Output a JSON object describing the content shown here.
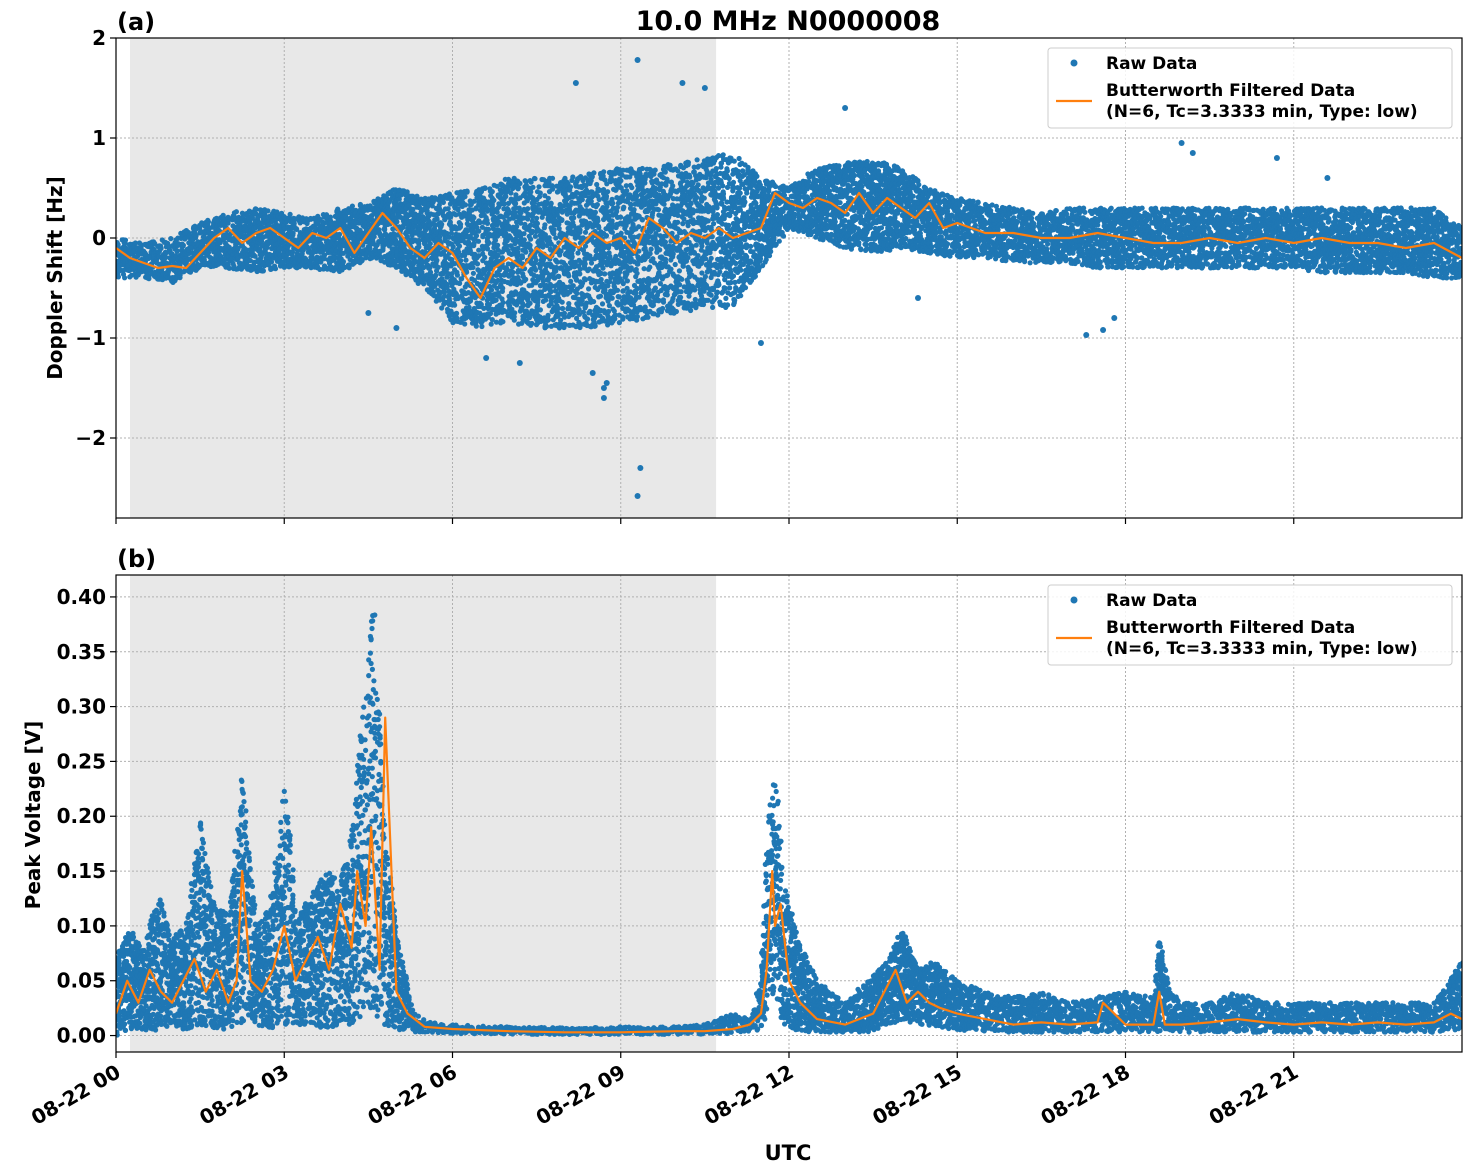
{
  "title": "10.0 MHz N0000008",
  "xlabel": "UTC",
  "x_tick_labels": [
    "08-22 00",
    "08-22 03",
    "08-22 06",
    "08-22 09",
    "08-22 12",
    "08-22 15",
    "08-22 18",
    "08-22 21"
  ],
  "colors": {
    "raw": "#1f77b4",
    "filtered": "#ff7f0e",
    "shade": "#e8e8e8",
    "grid": "#b0b0b0"
  },
  "legend_placement": "upper right",
  "legend": {
    "raw_label": "Raw Data",
    "filtered_label_line1": "Butterworth Filtered Data",
    "filtered_label_line2": "(N=6, Tc=3.3333 min, Type: low)"
  },
  "chart_data": [
    {
      "panel": "(a)",
      "type": "scatter",
      "ylabel": "Doppler Shift [Hz]",
      "ylim": [
        -2.8,
        2.0
      ],
      "y_ticks": [
        2,
        1,
        0,
        -1,
        -2
      ],
      "y_tick_labels": [
        "2",
        "1",
        "0",
        "−1",
        "−2"
      ],
      "xlim_hours": [
        0,
        24
      ],
      "grid": true,
      "shaded_interval_hours": [
        0.25,
        10.7
      ],
      "series": [
        {
          "name": "Raw Data",
          "kind": "envelope",
          "x": [
            0,
            0.5,
            1,
            1.5,
            2,
            2.5,
            3,
            3.5,
            4,
            4.5,
            5,
            5.5,
            6,
            6.5,
            7,
            7.5,
            8,
            8.5,
            9,
            9.5,
            10,
            10.5,
            11,
            11.5,
            12,
            12.5,
            13,
            13.5,
            14,
            14.5,
            15,
            15.5,
            16,
            16.5,
            17,
            17.5,
            18,
            18.5,
            19,
            19.5,
            20,
            20.5,
            21,
            21.5,
            22,
            22.5,
            23,
            23.5,
            24
          ],
          "low": [
            -0.4,
            -0.4,
            -0.45,
            -0.3,
            -0.3,
            -0.35,
            -0.3,
            -0.3,
            -0.35,
            -0.2,
            -0.3,
            -0.5,
            -0.85,
            -0.9,
            -0.85,
            -0.9,
            -0.9,
            -0.9,
            -0.85,
            -0.8,
            -0.75,
            -0.7,
            -0.7,
            -0.3,
            0.1,
            0.0,
            -0.1,
            -0.15,
            -0.1,
            -0.15,
            -0.2,
            -0.2,
            -0.25,
            -0.25,
            -0.25,
            -0.3,
            -0.3,
            -0.3,
            -0.3,
            -0.3,
            -0.3,
            -0.3,
            -0.3,
            -0.35,
            -0.35,
            -0.35,
            -0.35,
            -0.4,
            -0.4
          ],
          "high": [
            0.0,
            -0.05,
            0.0,
            0.15,
            0.25,
            0.3,
            0.25,
            0.2,
            0.3,
            0.35,
            0.5,
            0.4,
            0.45,
            0.5,
            0.6,
            0.6,
            0.6,
            0.65,
            0.7,
            0.7,
            0.75,
            0.8,
            0.85,
            0.6,
            0.5,
            0.7,
            0.75,
            0.8,
            0.7,
            0.5,
            0.4,
            0.35,
            0.3,
            0.25,
            0.3,
            0.3,
            0.3,
            0.3,
            0.3,
            0.3,
            0.3,
            0.3,
            0.3,
            0.3,
            0.3,
            0.3,
            0.3,
            0.3,
            0.1
          ]
        },
        {
          "name": "Raw Data",
          "kind": "points",
          "x": [
            8.2,
            9.3,
            9.35,
            9.3,
            8.7,
            10.1,
            10.5,
            11.5,
            13.0,
            17.3,
            17.6,
            19.0,
            20.7,
            8.7,
            8.75,
            8.5,
            7.2,
            6.6,
            5.0,
            4.5,
            14.3,
            17.8,
            21.6,
            19.2
          ],
          "y": [
            1.55,
            1.78,
            -2.3,
            -2.58,
            -1.6,
            1.55,
            1.5,
            -1.05,
            1.3,
            -0.97,
            -0.92,
            0.95,
            0.8,
            -1.5,
            -1.45,
            -1.35,
            -1.25,
            -1.2,
            -0.9,
            -0.75,
            -0.6,
            -0.8,
            0.6,
            0.85
          ]
        },
        {
          "name": "Butterworth Filtered Data (N=6, Tc=3.3333 min, Type: low)",
          "kind": "line",
          "x": [
            0,
            0.25,
            0.5,
            0.75,
            1,
            1.25,
            1.5,
            1.75,
            2,
            2.25,
            2.5,
            2.75,
            3,
            3.25,
            3.5,
            3.75,
            4,
            4.25,
            4.5,
            4.75,
            5,
            5.25,
            5.5,
            5.75,
            6,
            6.25,
            6.5,
            6.75,
            7,
            7.25,
            7.5,
            7.75,
            8,
            8.25,
            8.5,
            8.75,
            9,
            9.25,
            9.5,
            9.75,
            10,
            10.25,
            10.5,
            10.75,
            11,
            11.25,
            11.5,
            11.75,
            12,
            12.25,
            12.5,
            12.75,
            13,
            13.25,
            13.5,
            13.75,
            14,
            14.25,
            14.5,
            14.75,
            15,
            15.5,
            16,
            16.5,
            17,
            17.5,
            18,
            18.5,
            19,
            19.5,
            20,
            20.5,
            21,
            21.5,
            22,
            22.5,
            23,
            23.5,
            24
          ],
          "y": [
            -0.1,
            -0.2,
            -0.25,
            -0.3,
            -0.28,
            -0.3,
            -0.15,
            0.0,
            0.1,
            -0.05,
            0.05,
            0.1,
            0.0,
            -0.1,
            0.05,
            0.0,
            0.1,
            -0.15,
            0.05,
            0.25,
            0.1,
            -0.1,
            -0.2,
            -0.05,
            -0.15,
            -0.4,
            -0.6,
            -0.3,
            -0.2,
            -0.3,
            -0.1,
            -0.2,
            0.0,
            -0.1,
            0.05,
            -0.05,
            0.0,
            -0.15,
            0.2,
            0.1,
            -0.05,
            0.05,
            0.0,
            0.1,
            0.0,
            0.05,
            0.1,
            0.45,
            0.35,
            0.3,
            0.4,
            0.35,
            0.25,
            0.45,
            0.25,
            0.4,
            0.3,
            0.2,
            0.35,
            0.1,
            0.15,
            0.05,
            0.05,
            0.0,
            0.0,
            0.05,
            0.0,
            -0.05,
            -0.05,
            0.0,
            -0.05,
            0.0,
            -0.05,
            0.0,
            -0.05,
            -0.05,
            -0.1,
            -0.05,
            -0.2
          ]
        }
      ]
    },
    {
      "panel": "(b)",
      "type": "scatter",
      "ylabel": "Peak Voltage [V]",
      "ylim": [
        -0.015,
        0.42
      ],
      "y_ticks": [
        0.4,
        0.35,
        0.3,
        0.25,
        0.2,
        0.15,
        0.1,
        0.05,
        0.0
      ],
      "y_tick_labels": [
        "0.40",
        "0.35",
        "0.30",
        "0.25",
        "0.20",
        "0.15",
        "0.10",
        "0.05",
        "0.00"
      ],
      "xlim_hours": [
        0,
        24
      ],
      "grid": true,
      "shaded_interval_hours": [
        0.25,
        10.7
      ],
      "series": [
        {
          "name": "Raw Data",
          "kind": "envelope",
          "x": [
            0,
            0.25,
            0.5,
            0.75,
            1,
            1.25,
            1.5,
            1.75,
            2,
            2.25,
            2.5,
            2.75,
            3,
            3.25,
            3.5,
            3.75,
            4,
            4.25,
            4.4,
            4.6,
            4.8,
            5.0,
            5.3,
            5.6,
            6,
            7,
            8,
            9,
            10,
            10.5,
            11,
            11.3,
            11.5,
            11.6,
            11.75,
            11.9,
            12.1,
            12.4,
            12.7,
            13,
            13.4,
            13.8,
            14.0,
            14.3,
            14.6,
            15,
            15.5,
            16,
            16.5,
            17,
            17.5,
            18,
            18.5,
            18.6,
            18.8,
            19,
            19.5,
            20,
            20.5,
            21,
            21.5,
            22,
            22.5,
            23,
            23.5,
            23.8,
            24
          ],
          "low": [
            0.0,
            0.005,
            0.005,
            0.005,
            0.01,
            0.005,
            0.01,
            0.005,
            0.005,
            0.01,
            0.01,
            0.005,
            0.01,
            0.01,
            0.01,
            0.005,
            0.01,
            0.01,
            0.02,
            0.02,
            0.01,
            0.005,
            0.003,
            0.003,
            0.002,
            0.001,
            0.001,
            0.001,
            0.001,
            0.001,
            0.002,
            0.003,
            0.005,
            0.02,
            0.04,
            0.01,
            0.005,
            0.003,
            0.003,
            0.003,
            0.003,
            0.01,
            0.015,
            0.01,
            0.008,
            0.005,
            0.004,
            0.003,
            0.003,
            0.003,
            0.003,
            0.003,
            0.003,
            0.003,
            0.003,
            0.003,
            0.003,
            0.003,
            0.003,
            0.003,
            0.003,
            0.003,
            0.003,
            0.003,
            0.003,
            0.005,
            0.005
          ],
          "high": [
            0.07,
            0.1,
            0.08,
            0.13,
            0.09,
            0.1,
            0.2,
            0.12,
            0.11,
            0.24,
            0.1,
            0.12,
            0.23,
            0.11,
            0.13,
            0.15,
            0.14,
            0.2,
            0.3,
            0.4,
            0.18,
            0.1,
            0.02,
            0.012,
            0.01,
            0.008,
            0.007,
            0.008,
            0.008,
            0.01,
            0.02,
            0.015,
            0.05,
            0.18,
            0.255,
            0.14,
            0.1,
            0.06,
            0.04,
            0.03,
            0.05,
            0.07,
            0.1,
            0.06,
            0.07,
            0.05,
            0.04,
            0.035,
            0.04,
            0.03,
            0.035,
            0.04,
            0.035,
            0.09,
            0.04,
            0.03,
            0.03,
            0.04,
            0.03,
            0.03,
            0.03,
            0.03,
            0.03,
            0.03,
            0.03,
            0.05,
            0.07
          ]
        },
        {
          "name": "Butterworth Filtered Data (N=6, Tc=3.3333 min, Type: low)",
          "kind": "line",
          "x": [
            0,
            0.2,
            0.4,
            0.6,
            0.8,
            1,
            1.2,
            1.4,
            1.6,
            1.8,
            2,
            2.15,
            2.25,
            2.4,
            2.6,
            2.8,
            3,
            3.2,
            3.4,
            3.6,
            3.8,
            4,
            4.2,
            4.3,
            4.45,
            4.55,
            4.7,
            4.8,
            5.0,
            5.2,
            5.5,
            6,
            7,
            8,
            9,
            10,
            10.5,
            11,
            11.3,
            11.5,
            11.6,
            11.7,
            11.75,
            11.85,
            12,
            12.2,
            12.5,
            13,
            13.5,
            13.8,
            13.9,
            14.1,
            14.3,
            14.5,
            14.7,
            15,
            15.5,
            16,
            16.5,
            17,
            17.5,
            17.6,
            18,
            18.5,
            18.6,
            18.7,
            19,
            19.5,
            20,
            20.5,
            21,
            21.5,
            22,
            22.5,
            23,
            23.5,
            23.8,
            24
          ],
          "y": [
            0.02,
            0.05,
            0.03,
            0.06,
            0.04,
            0.03,
            0.05,
            0.07,
            0.04,
            0.06,
            0.03,
            0.05,
            0.15,
            0.05,
            0.04,
            0.06,
            0.1,
            0.05,
            0.07,
            0.09,
            0.06,
            0.12,
            0.08,
            0.15,
            0.1,
            0.19,
            0.06,
            0.29,
            0.04,
            0.02,
            0.008,
            0.006,
            0.004,
            0.003,
            0.003,
            0.004,
            0.004,
            0.006,
            0.01,
            0.02,
            0.06,
            0.15,
            0.1,
            0.12,
            0.05,
            0.03,
            0.015,
            0.01,
            0.02,
            0.05,
            0.06,
            0.03,
            0.04,
            0.03,
            0.025,
            0.02,
            0.015,
            0.01,
            0.012,
            0.01,
            0.012,
            0.03,
            0.01,
            0.01,
            0.04,
            0.01,
            0.01,
            0.012,
            0.015,
            0.012,
            0.01,
            0.012,
            0.01,
            0.012,
            0.01,
            0.012,
            0.02,
            0.015
          ]
        }
      ]
    }
  ]
}
